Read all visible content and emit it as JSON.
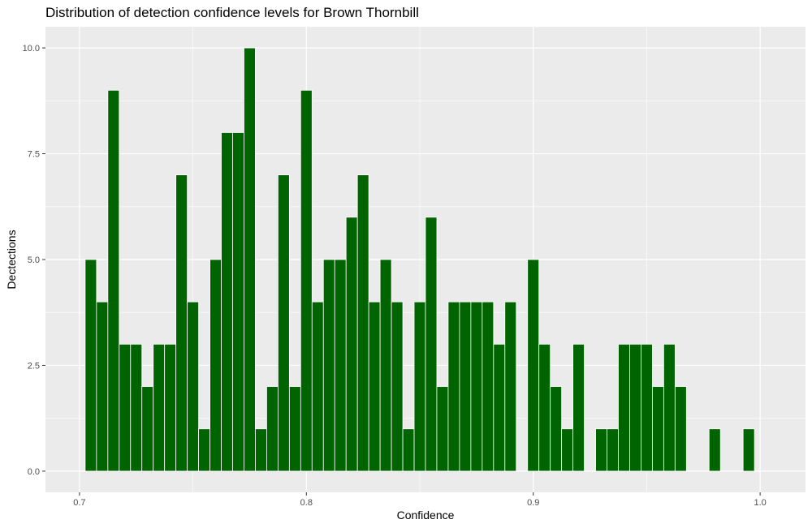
{
  "chart_data": {
    "type": "bar",
    "title": "Distribution of detection confidence levels for Brown Thornbill",
    "xlabel": "Confidence",
    "ylabel": "Dectections",
    "xlim": [
      0.685,
      1.02
    ],
    "ylim": [
      -0.5,
      10.5
    ],
    "x_ticks": [
      "0.7",
      "0.8",
      "0.9",
      "1.0"
    ],
    "y_ticks": [
      "0.0",
      "2.5",
      "5.0",
      "7.5",
      "10.0"
    ],
    "bin_width": 0.005,
    "bar_color": "#006400",
    "panel_background": "#ebebeb",
    "grid": true,
    "bins_x": [
      0.705,
      0.71,
      0.715,
      0.72,
      0.725,
      0.73,
      0.735,
      0.74,
      0.745,
      0.75,
      0.755,
      0.76,
      0.765,
      0.77,
      0.775,
      0.78,
      0.785,
      0.79,
      0.795,
      0.8,
      0.805,
      0.81,
      0.815,
      0.82,
      0.825,
      0.83,
      0.835,
      0.84,
      0.845,
      0.85,
      0.855,
      0.86,
      0.865,
      0.87,
      0.875,
      0.88,
      0.885,
      0.89,
      0.895,
      0.9,
      0.905,
      0.91,
      0.915,
      0.92,
      0.925,
      0.93,
      0.935,
      0.94,
      0.945,
      0.95,
      0.955,
      0.96,
      0.965,
      0.97,
      0.975,
      0.98,
      0.985,
      0.99,
      0.995
    ],
    "values": [
      5,
      4,
      9,
      3,
      3,
      2,
      3,
      3,
      7,
      4,
      1,
      5,
      8,
      8,
      10,
      1,
      2,
      7,
      2,
      9,
      4,
      5,
      5,
      6,
      7,
      4,
      5,
      4,
      1,
      4,
      6,
      2,
      4,
      4,
      4,
      4,
      3,
      4,
      0,
      5,
      3,
      2,
      1,
      3,
      0,
      1,
      1,
      3,
      3,
      3,
      2,
      3,
      2,
      0,
      0,
      1,
      0,
      0,
      1
    ]
  }
}
